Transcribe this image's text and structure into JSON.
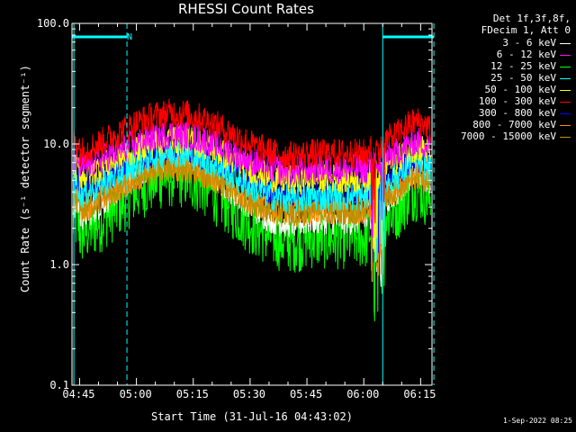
{
  "chart_data": {
    "type": "line",
    "title": "RHESSI Count Rates",
    "xlabel": "Start Time (31-Jul-16 04:43:02)",
    "ylabel": "Count Rate (s⁻¹ detector segment⁻¹)",
    "yscale": "log",
    "ylim": [
      0.1,
      100.0
    ],
    "xlim_minutes_after_0443": [
      0,
      95
    ],
    "x_tick_labels": [
      "04:45",
      "05:00",
      "05:15",
      "05:30",
      "05:45",
      "06:00",
      "06:15"
    ],
    "x_tick_minutes": [
      2,
      17,
      32,
      47,
      62,
      77,
      92
    ],
    "y_tick_labels": [
      "0.1",
      "1.0",
      "10.0",
      "100.0"
    ],
    "y_tick_values": [
      0.1,
      1.0,
      10.0,
      100.0
    ],
    "legend_header": [
      "Det 1f,3f,8f,",
      "FDecim 1, Att 0"
    ],
    "annotations": {
      "night_flag_label": "N"
    },
    "night_intervals_minutes": [
      [
        0,
        14.5
      ],
      [
        82,
        95.5
      ]
    ],
    "vertical_markers_minutes": [
      0.5,
      14.5,
      82.0,
      95.5
    ],
    "series": [
      {
        "name": "3 - 6 keV",
        "color": "#ffffff",
        "level_min": 2.2,
        "level_peak": 7.5
      },
      {
        "name": "6 - 12 keV",
        "color": "#ff00ff",
        "level_min": 6.0,
        "level_peak": 12.0
      },
      {
        "name": "12 - 25 keV",
        "color": "#00ff00",
        "level_min": 1.6,
        "level_peak": 5.5
      },
      {
        "name": "25 - 50 keV",
        "color": "#00ffff",
        "level_min": 3.5,
        "level_peak": 8.5
      },
      {
        "name": "50 - 100 keV",
        "color": "#ffff00",
        "level_min": 5.0,
        "level_peak": 11.0
      },
      {
        "name": "100 - 300 keV",
        "color": "#ff0000",
        "level_min": 8.0,
        "level_peak": 18.0
      },
      {
        "name": "300 - 800 keV",
        "color": "#0000ff",
        "level_min": 4.0,
        "level_peak": 9.0
      },
      {
        "name": "800 - 7000 keV",
        "color": "#ff8c00",
        "level_min": 2.7,
        "level_peak": 6.5
      },
      {
        "name": "7000 - 15000 keV",
        "color": "#bf8f00",
        "level_min": 2.7,
        "level_peak": 6.5
      }
    ],
    "footer_stamp": "1-Sep-2022 08:25"
  }
}
